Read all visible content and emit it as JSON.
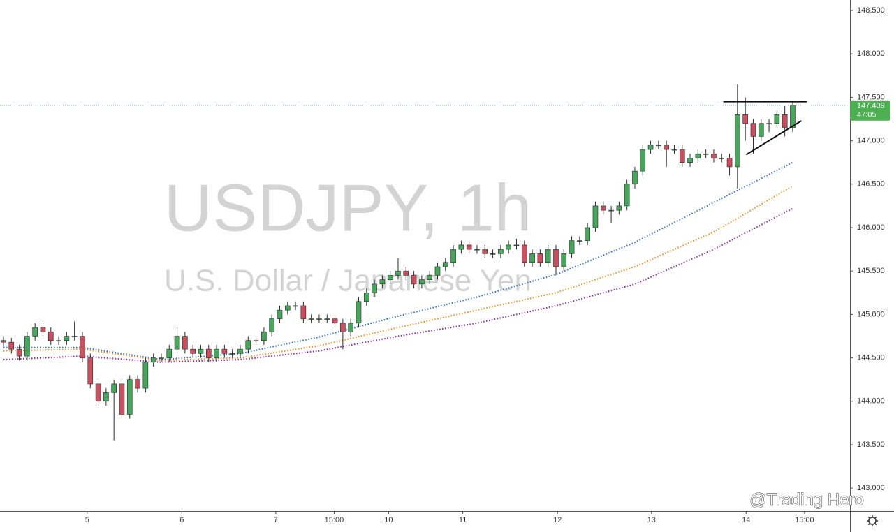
{
  "chart_data": {
    "type": "candlestick",
    "title": "USDJPY, 1h",
    "subtitle": "U.S. Dollar / Japanese Yen",
    "watermark": "@Trading Hero",
    "countdown": "47:05",
    "up_color": "#48a55c",
    "down_color": "#c8505f",
    "open": [
      144.7,
      144.68,
      144.6,
      144.52,
      144.75,
      144.85,
      144.8,
      144.7,
      144.7,
      144.75,
      144.75,
      144.5,
      144.2,
      144.0,
      144.1,
      144.2,
      143.85,
      144.25,
      144.15,
      144.45,
      144.5,
      144.5,
      144.6,
      144.75,
      144.6,
      144.55,
      144.6,
      144.5,
      144.6,
      144.55,
      144.55,
      144.6,
      144.7,
      144.7,
      144.8,
      144.95,
      145.05,
      145.1,
      145.1,
      144.95,
      144.95,
      144.95,
      144.95,
      144.9,
      144.8,
      144.9,
      145.15,
      145.25,
      145.35,
      145.4,
      145.45,
      145.5,
      145.45,
      145.35,
      145.4,
      145.45,
      145.55,
      145.6,
      145.75,
      145.8,
      145.75,
      145.75,
      145.7,
      145.7,
      145.75,
      145.8,
      145.8,
      145.6,
      145.7,
      145.6,
      145.75,
      145.55,
      145.7,
      145.85,
      145.85,
      146.0,
      146.25,
      146.2,
      146.2,
      146.25,
      146.5,
      146.65,
      146.9,
      146.95,
      146.95,
      146.9,
      146.9,
      146.75,
      146.8,
      146.85,
      146.85,
      146.8,
      146.8,
      146.7,
      147.3,
      147.2,
      147.05,
      147.2,
      147.2,
      147.3,
      147.15
    ],
    "high": [
      144.75,
      144.73,
      144.65,
      144.8,
      144.9,
      144.9,
      144.85,
      144.75,
      144.8,
      144.92,
      144.8,
      144.55,
      144.25,
      144.15,
      144.25,
      144.25,
      144.3,
      144.3,
      144.5,
      144.55,
      144.55,
      144.65,
      144.85,
      144.8,
      144.65,
      144.65,
      144.65,
      144.65,
      144.65,
      144.6,
      144.65,
      144.75,
      144.75,
      144.85,
      145.0,
      145.1,
      145.15,
      145.15,
      145.15,
      145.0,
      145.0,
      145.0,
      145.0,
      144.95,
      144.95,
      145.2,
      145.3,
      145.4,
      145.45,
      145.5,
      145.65,
      145.55,
      145.5,
      145.45,
      145.5,
      145.6,
      145.65,
      145.8,
      145.85,
      145.85,
      145.8,
      145.8,
      145.75,
      145.8,
      145.85,
      145.87,
      145.85,
      145.75,
      145.75,
      145.8,
      145.8,
      145.75,
      145.9,
      145.9,
      146.05,
      146.3,
      146.3,
      146.25,
      146.3,
      146.55,
      146.7,
      146.95,
      147.0,
      147.0,
      147.0,
      146.95,
      146.95,
      146.85,
      146.9,
      146.9,
      146.9,
      146.85,
      146.85,
      147.65,
      147.5,
      147.25,
      147.25,
      147.25,
      147.35,
      147.4,
      147.45
    ],
    "low": [
      144.63,
      144.55,
      144.47,
      144.47,
      144.7,
      144.75,
      144.65,
      144.65,
      144.65,
      144.7,
      144.45,
      144.15,
      143.95,
      143.95,
      143.55,
      143.8,
      143.8,
      144.1,
      144.1,
      144.4,
      144.45,
      144.45,
      144.55,
      144.55,
      144.5,
      144.5,
      144.45,
      144.45,
      144.5,
      144.5,
      144.5,
      144.55,
      144.65,
      144.65,
      144.75,
      144.9,
      145.0,
      145.05,
      144.9,
      144.9,
      144.9,
      144.9,
      144.85,
      144.6,
      144.75,
      144.85,
      145.1,
      145.2,
      145.3,
      145.35,
      145.4,
      145.4,
      145.3,
      145.3,
      145.35,
      145.4,
      145.5,
      145.55,
      145.7,
      145.7,
      145.7,
      145.65,
      145.65,
      145.65,
      145.7,
      145.75,
      145.55,
      145.55,
      145.55,
      145.55,
      145.45,
      145.5,
      145.65,
      145.8,
      145.8,
      145.95,
      146.15,
      146.05,
      146.15,
      146.2,
      146.45,
      146.6,
      146.85,
      146.9,
      146.7,
      146.85,
      146.7,
      146.7,
      146.75,
      146.8,
      146.75,
      146.75,
      146.6,
      146.45,
      147.0,
      146.85,
      147.0,
      147.1,
      147.15,
      147.05,
      147.1
    ],
    "close": [
      144.68,
      144.6,
      144.52,
      144.75,
      144.85,
      144.8,
      144.7,
      144.7,
      144.75,
      144.75,
      144.5,
      144.2,
      144.0,
      144.1,
      144.2,
      143.85,
      144.25,
      144.15,
      144.45,
      144.5,
      144.5,
      144.6,
      144.75,
      144.6,
      144.55,
      144.6,
      144.5,
      144.6,
      144.55,
      144.55,
      144.6,
      144.7,
      144.7,
      144.8,
      144.95,
      145.05,
      145.1,
      145.1,
      144.95,
      144.95,
      144.95,
      144.95,
      144.9,
      144.8,
      144.9,
      145.15,
      145.25,
      145.35,
      145.4,
      145.45,
      145.5,
      145.45,
      145.35,
      145.4,
      145.45,
      145.55,
      145.6,
      145.75,
      145.8,
      145.75,
      145.75,
      145.7,
      145.7,
      145.75,
      145.8,
      145.8,
      145.6,
      145.7,
      145.6,
      145.75,
      145.55,
      145.7,
      145.85,
      145.85,
      146.0,
      146.25,
      146.2,
      146.2,
      146.25,
      146.5,
      146.65,
      146.9,
      146.95,
      146.95,
      146.9,
      146.9,
      146.75,
      146.8,
      146.85,
      146.85,
      146.8,
      146.8,
      146.7,
      147.3,
      147.2,
      147.05,
      147.2,
      147.2,
      147.3,
      147.15,
      147.409
    ],
    "moving_averages": {
      "x": [
        0,
        10,
        20,
        30,
        40,
        50,
        60,
        70,
        80,
        90,
        100
      ],
      "series": [
        {
          "color": "#2e6fd8",
          "values": [
            144.62,
            144.62,
            144.48,
            144.55,
            144.74,
            144.98,
            145.2,
            145.46,
            145.83,
            146.29,
            146.75
          ]
        },
        {
          "color": "#f28c1c",
          "values": [
            144.58,
            144.6,
            144.47,
            144.5,
            144.64,
            144.85,
            145.05,
            145.25,
            145.55,
            145.95,
            146.48
          ]
        },
        {
          "color": "#8e24aa",
          "values": [
            144.48,
            144.52,
            144.45,
            144.48,
            144.58,
            144.75,
            144.9,
            145.1,
            145.35,
            145.75,
            146.22
          ]
        }
      ]
    },
    "trendlines": [
      {
        "x": [
          91.2,
          101.8
        ],
        "y": [
          147.45,
          147.45
        ]
      },
      {
        "x": [
          94.1,
          101.1
        ],
        "y": [
          146.84,
          147.23
        ]
      }
    ],
    "price_line_color": "#4fb3b3",
    "price_label_color": "#4caf50",
    "xlim": [
      -0.44,
      107.26
    ],
    "ylim": [
      142.736,
      148.621
    ],
    "xticks": [
      {
        "value": 10.6,
        "label": "5"
      },
      {
        "value": 22.6,
        "label": "6"
      },
      {
        "value": 34.5,
        "label": "7"
      },
      {
        "value": 41.9,
        "label": "15:00"
      },
      {
        "value": 48.8,
        "label": "10"
      },
      {
        "value": 58.2,
        "label": "11"
      },
      {
        "value": 70.2,
        "label": "12"
      },
      {
        "value": 82.1,
        "label": "13"
      },
      {
        "value": 94.1,
        "label": "14"
      },
      {
        "value": 101.5,
        "label": "15:00"
      }
    ],
    "yticks": [
      {
        "value": 143.0,
        "label": "143.000"
      },
      {
        "value": 143.5,
        "label": "143.500"
      },
      {
        "value": 144.0,
        "label": "144.000"
      },
      {
        "value": 144.5,
        "label": "144.500"
      },
      {
        "value": 145.0,
        "label": "145.000"
      },
      {
        "value": 145.5,
        "label": "145.500"
      },
      {
        "value": 146.0,
        "label": "146.000"
      },
      {
        "value": 146.5,
        "label": "146.500"
      },
      {
        "value": 147.0,
        "label": "147.000"
      },
      {
        "value": 147.5,
        "label": "147.500"
      },
      {
        "value": 148.0,
        "label": "148.000"
      },
      {
        "value": 148.5,
        "label": "148.500"
      }
    ]
  }
}
